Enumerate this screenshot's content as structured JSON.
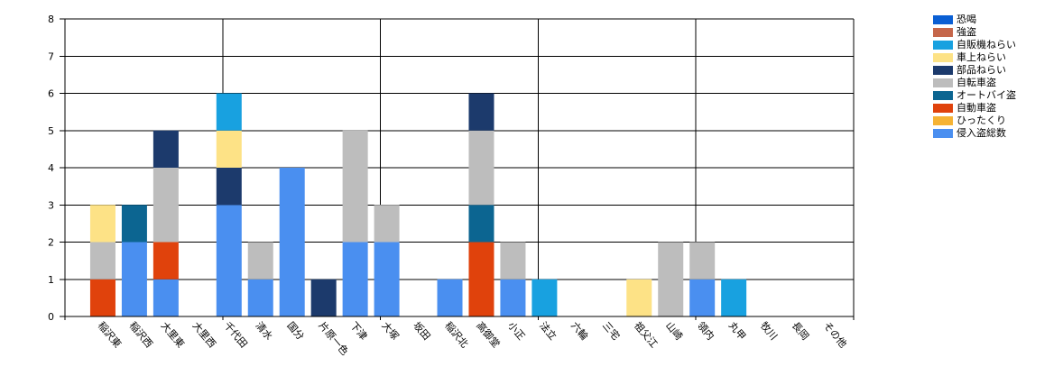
{
  "chart_data": {
    "type": "bar",
    "stacked": true,
    "title": "",
    "xlabel": "",
    "ylabel": "",
    "ylim": [
      0,
      8
    ],
    "yticks": [
      0,
      1,
      2,
      3,
      4,
      5,
      6,
      7,
      8
    ],
    "grid": true,
    "legend_position": "top-right",
    "categories": [
      "稲沢東",
      "稲沢西",
      "大里東",
      "大里西",
      "千代田",
      "清水",
      "国分",
      "片原一色",
      "下津",
      "大塚",
      "坂田",
      "稲沢北",
      "高御堂",
      "小正",
      "法立",
      "六輪",
      "三宅",
      "祖父江",
      "山崎",
      "領内",
      "丸甲",
      "牧川",
      "長岡",
      "その他"
    ],
    "series": [
      {
        "name": "侵入盗総数",
        "color": "#4a8ff0",
        "values": [
          0,
          2,
          1,
          0,
          3,
          1,
          4,
          0,
          2,
          2,
          0,
          1,
          0,
          1,
          0,
          0,
          0,
          0,
          0,
          1,
          0,
          0,
          0,
          0
        ]
      },
      {
        "name": "ひったくり",
        "color": "#f5b335",
        "values": [
          0,
          0,
          0,
          0,
          0,
          0,
          0,
          0,
          0,
          0,
          0,
          0,
          0,
          0,
          0,
          0,
          0,
          0,
          0,
          0,
          0,
          0,
          0,
          0
        ]
      },
      {
        "name": "自動車盗",
        "color": "#e0420c",
        "values": [
          1,
          0,
          1,
          0,
          0,
          0,
          0,
          0,
          0,
          0,
          0,
          0,
          2,
          0,
          0,
          0,
          0,
          0,
          0,
          0,
          0,
          0,
          0,
          0
        ]
      },
      {
        "name": "オートバイ盗",
        "color": "#0c6591",
        "values": [
          0,
          1,
          0,
          0,
          0,
          0,
          0,
          0,
          0,
          0,
          0,
          0,
          1,
          0,
          0,
          0,
          0,
          0,
          0,
          0,
          0,
          0,
          0,
          0
        ]
      },
      {
        "name": "自転車盗",
        "color": "#bdbdbd",
        "values": [
          1,
          0,
          2,
          0,
          0,
          1,
          0,
          0,
          3,
          1,
          0,
          0,
          2,
          1,
          0,
          0,
          0,
          0,
          2,
          1,
          0,
          0,
          0,
          0
        ]
      },
      {
        "name": "部品ねらい",
        "color": "#1c3a6c",
        "values": [
          0,
          0,
          1,
          0,
          1,
          0,
          0,
          1,
          0,
          0,
          0,
          0,
          1,
          0,
          0,
          0,
          0,
          0,
          0,
          0,
          0,
          0,
          0,
          0
        ]
      },
      {
        "name": "車上ねらい",
        "color": "#fde286",
        "values": [
          1,
          0,
          0,
          0,
          1,
          0,
          0,
          0,
          0,
          0,
          0,
          0,
          0,
          0,
          0,
          0,
          0,
          1,
          0,
          0,
          0,
          0,
          0,
          0
        ]
      },
      {
        "name": "自販機ねらい",
        "color": "#18a1e0",
        "values": [
          0,
          0,
          0,
          0,
          1,
          0,
          0,
          0,
          0,
          0,
          0,
          0,
          0,
          0,
          1,
          0,
          0,
          0,
          0,
          0,
          1,
          0,
          0,
          0
        ]
      },
      {
        "name": "強盗",
        "color": "#c5664a",
        "values": [
          0,
          0,
          0,
          0,
          0,
          0,
          0,
          0,
          0,
          0,
          0,
          0,
          0,
          0,
          0,
          0,
          0,
          0,
          0,
          0,
          0,
          0,
          0,
          0
        ]
      },
      {
        "name": "恐喝",
        "color": "#0a5fd4",
        "values": [
          0,
          0,
          0,
          0,
          0,
          0,
          0,
          0,
          0,
          0,
          0,
          0,
          0,
          0,
          0,
          0,
          0,
          0,
          0,
          0,
          0,
          0,
          0,
          0
        ]
      }
    ],
    "legend_order": [
      "恐喝",
      "強盗",
      "自販機ねらい",
      "車上ねらい",
      "部品ねらい",
      "自転車盗",
      "オートバイ盗",
      "自動車盗",
      "ひったくり",
      "侵入盗総数"
    ]
  }
}
